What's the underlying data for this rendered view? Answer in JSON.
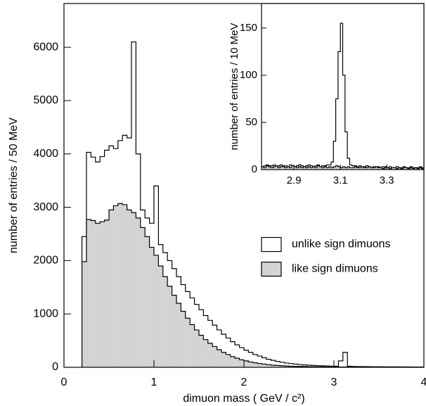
{
  "chart_data": [
    {
      "type": "histogram",
      "x_label": "dimuon mass ( GeV / c²)",
      "y_label": "number of entries / 50 MeV",
      "bins": [
        0.2,
        0.25,
        0.3,
        0.35,
        0.4,
        0.45,
        0.5,
        0.55,
        0.6,
        0.65,
        0.7,
        0.75,
        0.8,
        0.85,
        0.9,
        0.95,
        1,
        1.05,
        1.1,
        1.15,
        1.2,
        1.25,
        1.3,
        1.35,
        1.4,
        1.45,
        1.5,
        1.55,
        1.6,
        1.65,
        1.7,
        1.75,
        1.8,
        1.85,
        1.9,
        1.95,
        2,
        2.05,
        2.1,
        2.15,
        2.2,
        2.25,
        2.3,
        2.35,
        2.4,
        2.45,
        2.5,
        2.55,
        2.6,
        2.65,
        2.7,
        2.75,
        2.8,
        2.85,
        2.9,
        2.95,
        3,
        3.05,
        3.1,
        3.15,
        3.2,
        3.25,
        3.3,
        3.35,
        3.4,
        3.45,
        3.5,
        3.55,
        3.6,
        3.65,
        3.7,
        3.75,
        3.8,
        3.85,
        3.9,
        3.95,
        4
      ],
      "series": [
        {
          "name": "unlike sign dimuons",
          "color": "#ffffff",
          "values": [
            2450,
            4030,
            3940,
            3850,
            3950,
            4070,
            4150,
            4100,
            4250,
            4350,
            4300,
            6100,
            4000,
            2950,
            2800,
            2700,
            3400,
            2300,
            2150,
            2000,
            1850,
            1700,
            1550,
            1420,
            1300,
            1180,
            1080,
            970,
            880,
            790,
            700,
            620,
            550,
            480,
            420,
            370,
            320,
            280,
            240,
            210,
            180,
            150,
            130,
            110,
            95,
            80,
            70,
            60,
            50,
            45,
            40,
            35,
            30,
            28,
            25,
            22,
            20,
            120,
            280,
            20,
            15,
            14,
            13,
            12,
            11,
            10,
            10,
            9,
            9,
            8,
            8,
            7,
            7,
            6,
            6,
            5
          ]
        },
        {
          "name": "like sign dimuons",
          "color": "#d3d3d3",
          "values": [
            1980,
            2770,
            2750,
            2700,
            2730,
            2760,
            2950,
            3030,
            3070,
            3050,
            2950,
            2900,
            2800,
            2620,
            2450,
            2250,
            2100,
            1900,
            1700,
            1520,
            1350,
            1200,
            1050,
            920,
            800,
            700,
            600,
            520,
            450,
            390,
            330,
            280,
            240,
            200,
            170,
            140,
            120,
            100,
            85,
            70,
            60,
            50,
            40,
            35,
            30,
            25,
            20,
            18,
            16,
            14,
            12,
            10,
            9,
            8,
            7,
            6,
            6,
            5,
            5,
            5,
            4,
            4,
            4,
            3,
            3,
            3,
            3,
            3,
            2,
            2,
            2,
            2,
            2,
            2,
            2,
            2
          ]
        }
      ],
      "edgecolor": "#000000",
      "xlim": [
        0,
        4
      ],
      "xticks": [
        0,
        1,
        2,
        3,
        4
      ],
      "ylim": [
        0,
        6820
      ],
      "yticks": [
        0,
        1000,
        2000,
        3000,
        4000,
        5000,
        6000
      ],
      "legend": "center right"
    },
    {
      "type": "histogram",
      "y_label": "number of entries / 10 MeV",
      "bins": [
        2.76,
        2.77,
        2.78,
        2.79,
        2.8,
        2.81,
        2.82,
        2.83,
        2.84,
        2.85,
        2.86,
        2.87,
        2.88,
        2.89,
        2.9,
        2.91,
        2.92,
        2.93,
        2.94,
        2.95,
        2.96,
        2.97,
        2.98,
        2.99,
        3,
        3.01,
        3.02,
        3.03,
        3.04,
        3.05,
        3.06,
        3.07,
        3.08,
        3.09,
        3.1,
        3.11,
        3.12,
        3.13,
        3.14,
        3.15,
        3.16,
        3.17,
        3.18,
        3.19,
        3.2,
        3.21,
        3.22,
        3.23,
        3.24,
        3.25,
        3.26,
        3.27,
        3.28,
        3.29,
        3.3,
        3.31,
        3.32,
        3.33,
        3.34,
        3.35,
        3.36,
        3.37,
        3.38,
        3.39,
        3.4,
        3.41,
        3.42,
        3.43,
        3.44,
        3.45,
        3.46
      ],
      "series": [
        {
          "name": "unlike sign dimuons",
          "color": "#ffffff",
          "values": [
            3,
            4,
            5,
            4,
            4,
            5,
            3,
            4,
            5,
            4,
            4,
            3,
            5,
            4,
            3,
            4,
            5,
            4,
            3,
            4,
            5,
            4,
            3,
            4,
            5,
            3,
            4,
            4,
            5,
            5,
            8,
            30,
            75,
            125,
            155,
            100,
            40,
            12,
            5,
            4,
            4,
            3,
            4,
            3,
            3,
            4,
            3,
            2,
            3,
            3,
            3,
            2,
            3,
            3,
            2,
            3,
            2,
            2,
            3,
            2,
            2,
            3,
            2,
            2,
            3,
            2,
            2,
            2,
            3,
            2
          ]
        },
        {
          "name": "like sign dimuons",
          "color": "#d3d3d3",
          "values": [
            3,
            2,
            4,
            3,
            2,
            3,
            4,
            2,
            3,
            3,
            2,
            3,
            2,
            4,
            3,
            2,
            3,
            2,
            3,
            2,
            3,
            2,
            3,
            2,
            4,
            3,
            2,
            3,
            2,
            3,
            2,
            3,
            4,
            3,
            2,
            3,
            2,
            3,
            2,
            2,
            3,
            2,
            2,
            3,
            2,
            2,
            3,
            2,
            2,
            3,
            2,
            2,
            1,
            2,
            2,
            1,
            2,
            2,
            1,
            2,
            1,
            2,
            2,
            1,
            2,
            1,
            2,
            1,
            2,
            1
          ]
        }
      ],
      "edgecolor": "#000000",
      "xlim": [
        2.76,
        3.46
      ],
      "xticks": [
        2.9,
        3.1,
        3.3
      ],
      "ylim": [
        0,
        176
      ],
      "yticks": [
        0,
        50,
        100,
        150
      ]
    }
  ]
}
